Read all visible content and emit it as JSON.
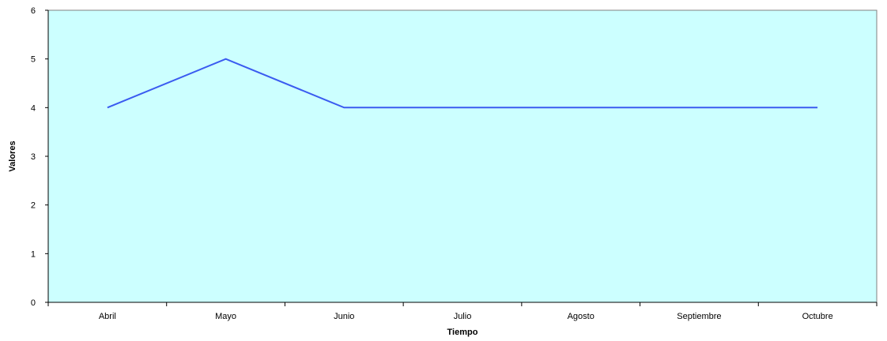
{
  "chart_data": {
    "type": "line",
    "title": "",
    "xlabel": "Tiempo",
    "ylabel": "Valores",
    "categories": [
      "Abril",
      "Mayo",
      "Junio",
      "Julio",
      "Agosto",
      "Septiembre",
      "Octubre"
    ],
    "series": [
      {
        "values": [
          4,
          5,
          4,
          4,
          4,
          4,
          4
        ],
        "color": "#3a5bf0"
      }
    ],
    "ylim": [
      0,
      6
    ],
    "yticks": [
      "0",
      "1",
      "2",
      "3",
      "4",
      "5",
      "6"
    ],
    "grid": false,
    "legend": "none",
    "plot_background": "#ccffff"
  }
}
